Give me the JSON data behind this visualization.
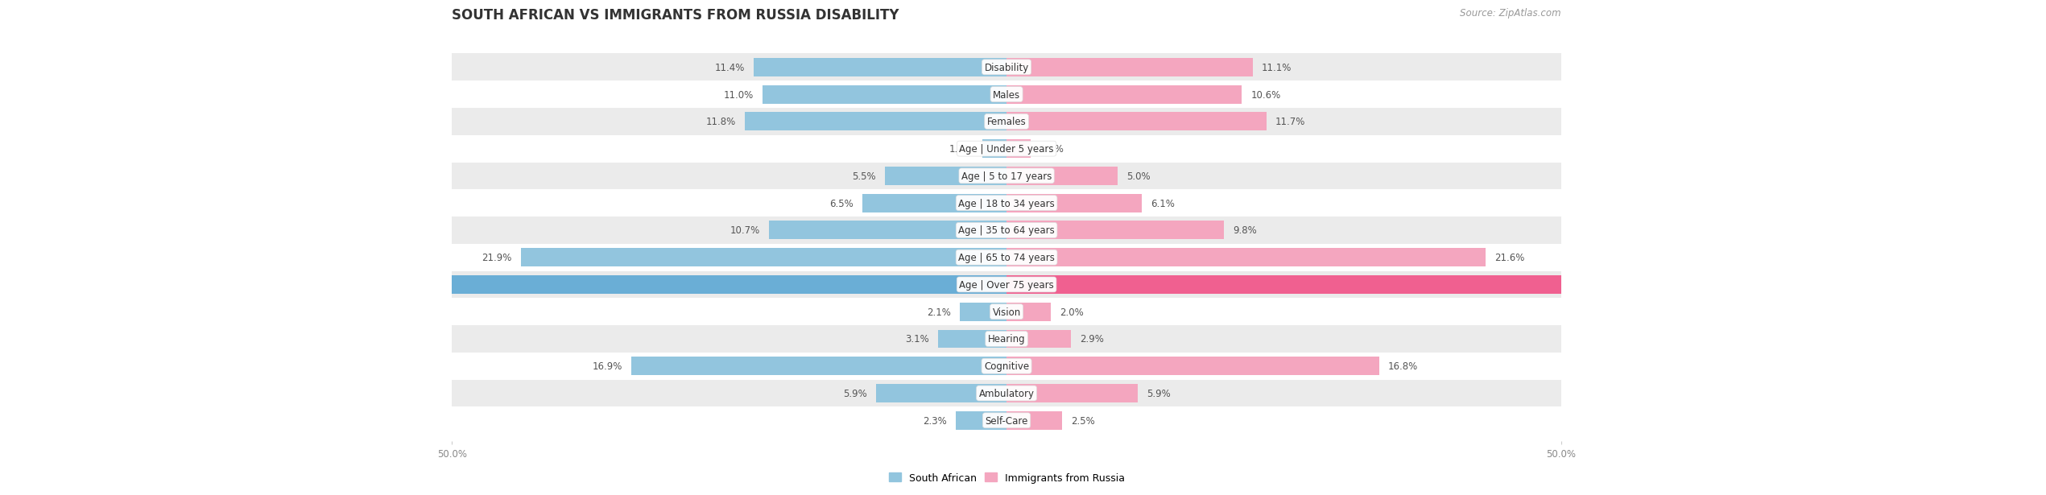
{
  "title": "SOUTH AFRICAN VS IMMIGRANTS FROM RUSSIA DISABILITY",
  "source": "Source: ZipAtlas.com",
  "categories": [
    "Disability",
    "Males",
    "Females",
    "Age | Under 5 years",
    "Age | 5 to 17 years",
    "Age | 18 to 34 years",
    "Age | 35 to 64 years",
    "Age | 65 to 74 years",
    "Age | Over 75 years",
    "Vision",
    "Hearing",
    "Cognitive",
    "Ambulatory",
    "Self-Care"
  ],
  "south_african": [
    11.4,
    11.0,
    11.8,
    1.1,
    5.5,
    6.5,
    10.7,
    21.9,
    45.5,
    2.1,
    3.1,
    16.9,
    5.9,
    2.3
  ],
  "immigrants_russia": [
    11.1,
    10.6,
    11.7,
    1.1,
    5.0,
    6.1,
    9.8,
    21.6,
    47.0,
    2.0,
    2.9,
    16.8,
    5.9,
    2.5
  ],
  "color_sa": "#92c5de",
  "color_ru": "#f4a6bf",
  "color_sa_over75": "#6aaed6",
  "color_ru_over75": "#f06090",
  "bar_height": 0.68,
  "xlim": [
    0,
    50
  ],
  "axis_label_left": "50.0%",
  "axis_label_right": "50.0%",
  "legend_sa": "South African",
  "legend_ru": "Immigrants from Russia",
  "bg_color": "#ffffff",
  "row_bg_odd": "#ebebeb",
  "row_bg_even": "#ffffff",
  "title_fontsize": 12,
  "label_fontsize": 8.5,
  "cat_fontsize": 8.5,
  "value_fontsize": 8.5,
  "tick_fontsize": 8.5,
  "source_fontsize": 8.5
}
